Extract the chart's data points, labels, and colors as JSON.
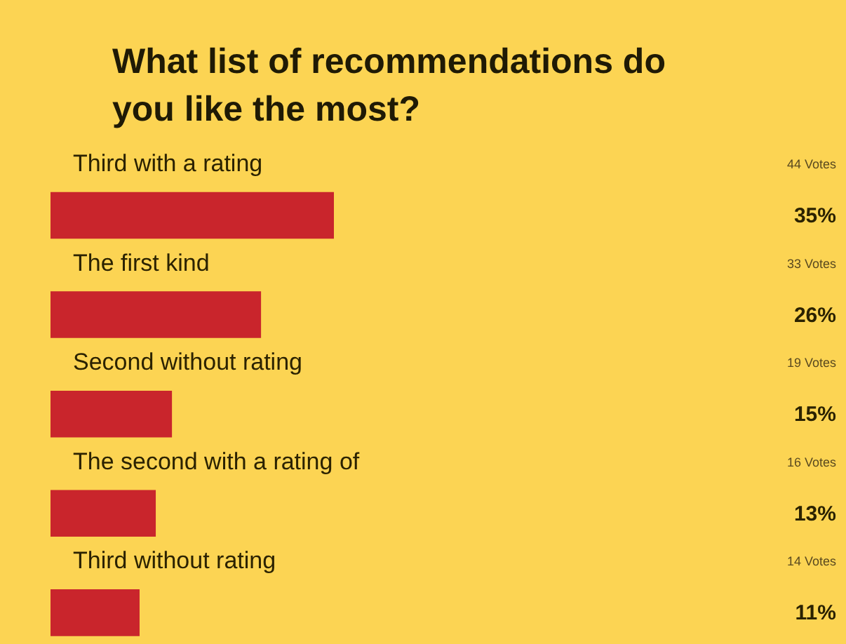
{
  "chart_data": {
    "type": "bar",
    "orientation": "horizontal",
    "title": "What list of recommendations do you like the most?",
    "categories": [
      "Third with a rating",
      "The first kind",
      "Second without rating",
      "The second with a rating of",
      "Third without rating"
    ],
    "values": [
      35,
      26,
      15,
      13,
      11
    ],
    "value_labels": [
      "35%",
      "26%",
      "15%",
      "13%",
      "11%"
    ],
    "color": "#c9252c",
    "annotations": [
      "44 Votes",
      "33 Votes",
      "19 Votes",
      "16 Votes",
      "14 Votes"
    ]
  }
}
